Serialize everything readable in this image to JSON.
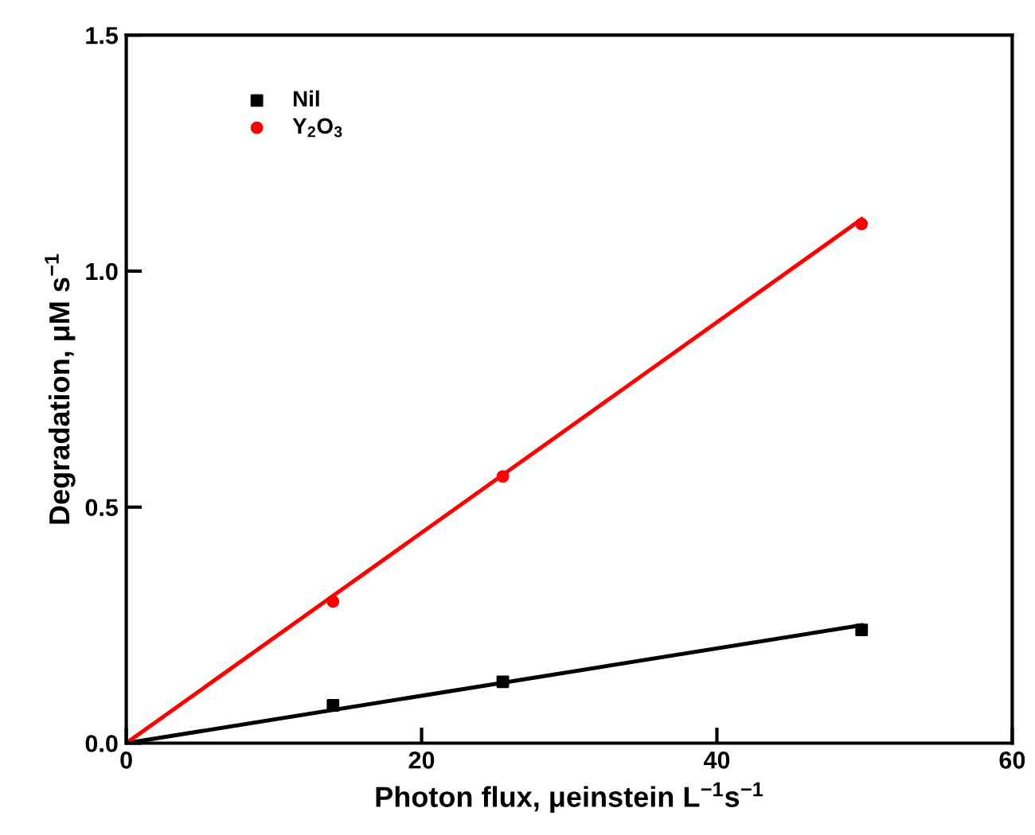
{
  "chart_data": {
    "type": "scatter",
    "xlabel": "Photon flux, μeinstein L$^{−1}$s$^{−1}$",
    "ylabel": "Degradation, μM s$^{−1}$",
    "xlim": [
      0,
      60
    ],
    "xticks": [
      0,
      20,
      40,
      60
    ],
    "ylim": [
      0,
      1.5
    ],
    "yticks": [
      {
        "value": 0,
        "label": "0.0"
      },
      {
        "value": 0.5,
        "label": "0.5"
      },
      {
        "value": 1.0,
        "label": "1.0"
      },
      {
        "value": 1.5,
        "label": "1.5"
      }
    ],
    "grid": false,
    "legend": "top left",
    "series": [
      {
        "name": "Nil",
        "marker": "square",
        "color": "#000000",
        "x": [
          14,
          25.5,
          49.8
        ],
        "values": [
          0.08,
          0.13,
          0.24
        ]
      },
      {
        "name": "Y$_{2}$O$_{3}$",
        "marker": "circle",
        "color": "#ff0000",
        "x": [
          14,
          25.5,
          49.8
        ],
        "values": [
          0.3,
          0.565,
          1.1
        ]
      },
      {
        "type": "line",
        "marker": "none",
        "color": "#000000",
        "x": [
          0,
          49.8
        ],
        "values": [
          0,
          0.25
        ]
      },
      {
        "type": "line",
        "marker": "none",
        "color": "#ff0000",
        "x": [
          0,
          49.8
        ],
        "values": [
          0,
          1.11
        ]
      }
    ]
  }
}
